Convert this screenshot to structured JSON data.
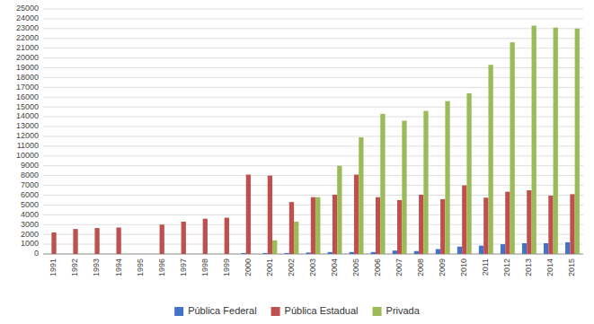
{
  "chart_data": {
    "type": "bar",
    "categories": [
      "1991",
      "1992",
      "1993",
      "1994",
      "1995",
      "1996",
      "1997",
      "1998",
      "1999",
      "2000",
      "2001",
      "2002",
      "2003",
      "2004",
      "2005",
      "2006",
      "2007",
      "2008",
      "2009",
      "2010",
      "2011",
      "2012",
      "2013",
      "2014",
      "2015"
    ],
    "series": [
      {
        "name": "Pública Federal",
        "color": "#4472C4",
        "values": [
          0,
          0,
          0,
          0,
          0,
          0,
          0,
          0,
          0,
          100,
          100,
          100,
          150,
          200,
          200,
          200,
          350,
          300,
          500,
          750,
          850,
          1000,
          1100,
          1100,
          1200
        ]
      },
      {
        "name": "Pública Estadual",
        "color": "#C0504D",
        "values": [
          2200,
          2550,
          2650,
          2700,
          0,
          3000,
          3300,
          3600,
          3700,
          8100,
          8000,
          5300,
          5800,
          6050,
          8100,
          5800,
          5500,
          6050,
          5600,
          7000,
          5750,
          6350,
          6500,
          5950,
          6100
        ]
      },
      {
        "name": "Privada",
        "color": "#9BBB59",
        "values": [
          0,
          0,
          0,
          0,
          0,
          0,
          0,
          0,
          0,
          0,
          1400,
          3300,
          5800,
          9000,
          11900,
          14300,
          13600,
          14600,
          15600,
          16400,
          19300,
          21600,
          23300,
          23100,
          23000
        ]
      }
    ],
    "ylim": [
      0,
      25000
    ],
    "yticks": [
      0,
      1000,
      2000,
      3000,
      4000,
      5000,
      6000,
      7000,
      8000,
      9000,
      10000,
      11000,
      12000,
      13000,
      14000,
      15000,
      16000,
      17000,
      18000,
      19000,
      20000,
      21000,
      22000,
      23000,
      24000,
      25000
    ],
    "grid": true,
    "legend": "bottom"
  }
}
